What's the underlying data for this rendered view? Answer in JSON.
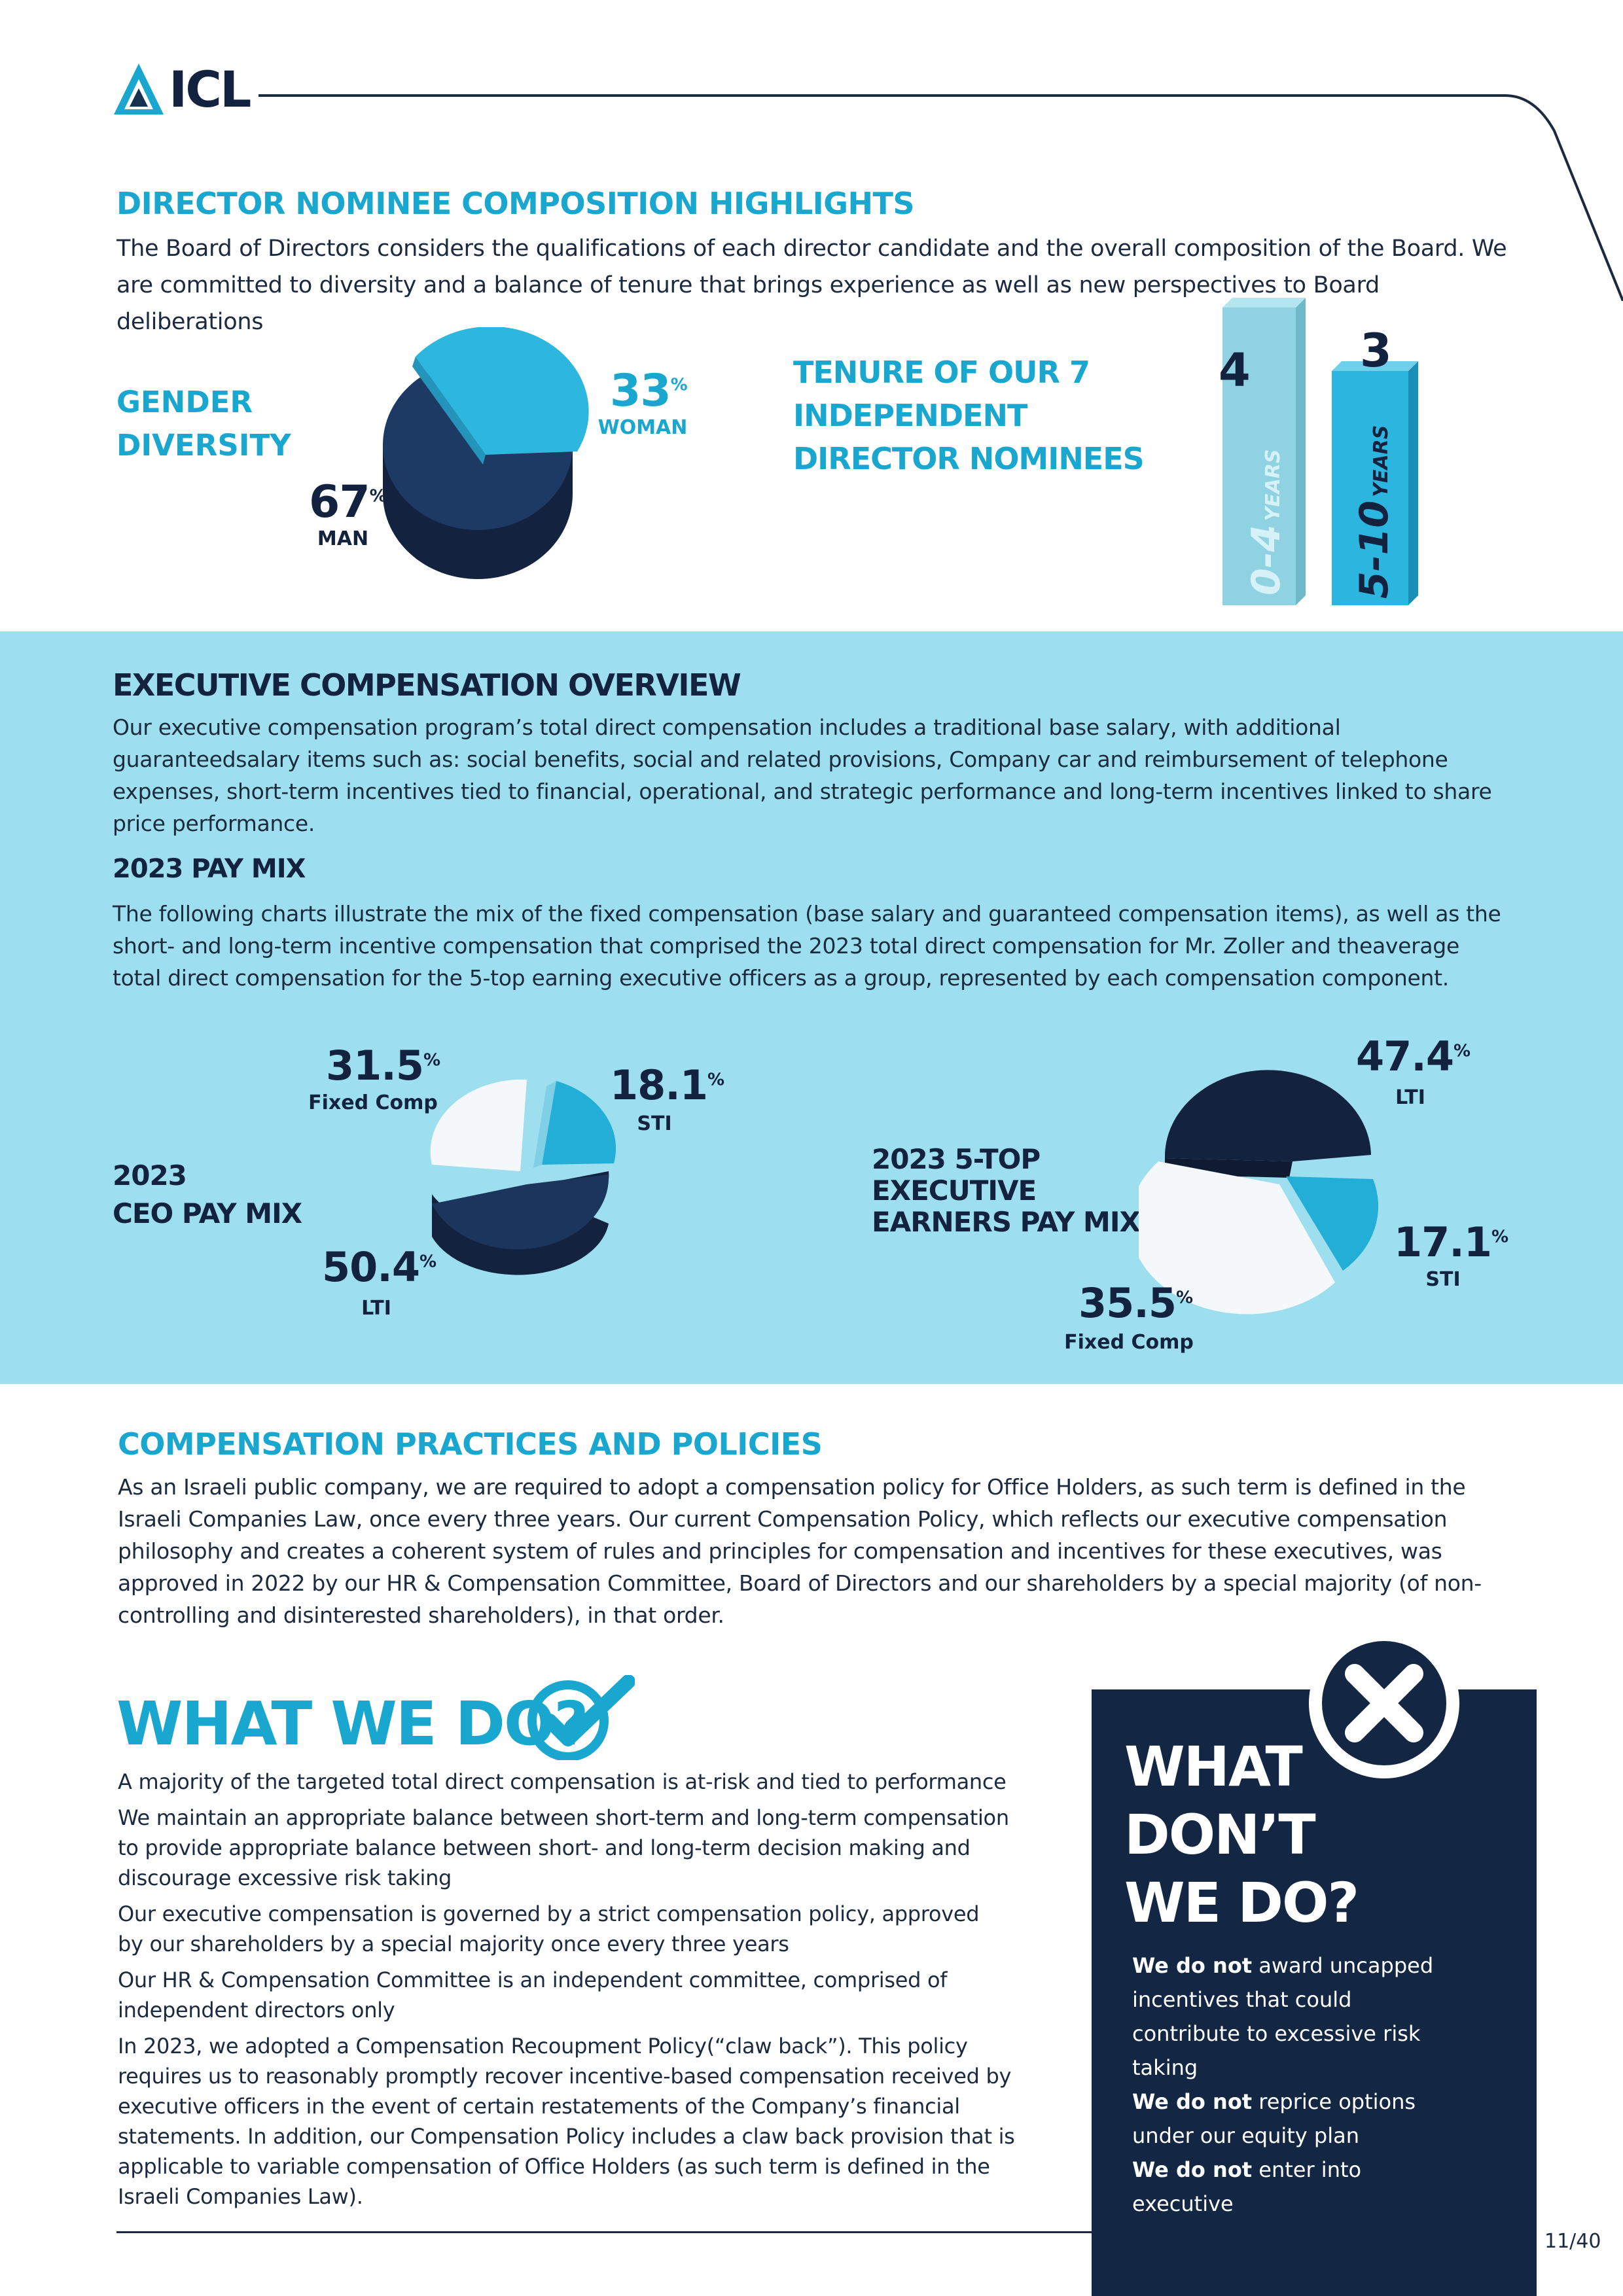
{
  "header": {
    "logo_text": "ICL"
  },
  "director": {
    "title": "DIRECTOR NOMINEE COMPOSITION HIGHLIGHTS",
    "intro": "The Board of Directors considers the qualifications of each director candidate and the overall composition of the Board. We are committed to diversity and a balance of tenure that brings experience as well as new perspectives to Board deliberations",
    "gender": {
      "title_line1": "GENDER",
      "title_line2": "DIVERSITY",
      "woman_value": "33",
      "woman_label": "WOMAN",
      "man_value": "67",
      "man_label": "MAN",
      "pct_sign": "%"
    },
    "tenure": {
      "title_line1": "TENURE OF OUR 7",
      "title_line2": "INDEPENDENT",
      "title_line3": "DIRECTOR NOMINEES",
      "bars": [
        {
          "count": "4",
          "label": "0-4",
          "unit": "YEARS"
        },
        {
          "count": "3",
          "label": "5-10",
          "unit": "YEARS"
        }
      ]
    }
  },
  "exec": {
    "title": "EXECUTIVE COMPENSATION OVERVIEW",
    "intro": "Our executive compensation program’s total direct compensation includes a traditional base salary, with additional guaranteedsalary items such as: social benefits, social and related provisions, Company car and reimbursement of telephone expenses, short-term incentives tied to financial, operational, and strategic performance and long-term incentives linked to share price performance.",
    "paymix_title": "2023 PAY MIX",
    "paymix_text": "The following charts illustrate the mix of the fixed compensation (base salary and guaranteed compensation items), as well as the short- and long-term incentive compensation that comprised the 2023 total direct compensation for Mr. Zoller and theaverage total direct compensation for the 5-top earning executive officers as a group, represented by each compensation component.",
    "ceo": {
      "title_line1": "2023",
      "title_line2": "CEO PAY MIX",
      "fixed_value": "31.5",
      "fixed_label": "Fixed Comp",
      "sti_value": "18.1",
      "sti_label": "STI",
      "lti_value": "50.4",
      "lti_label": "LTI"
    },
    "top5": {
      "title_line1": "2023 5-TOP",
      "title_line2": "EXECUTIVE",
      "title_line3": "EARNERS PAY MIX",
      "lti_value": "47.4",
      "lti_label": "LTI",
      "sti_value": "17.1",
      "sti_label": "STI",
      "fixed_value": "35.5",
      "fixed_label": "Fixed Comp"
    }
  },
  "practices": {
    "title": "COMPENSATION PRACTICES AND POLICIES",
    "text": "As an Israeli public company, we are required to adopt a compensation policy for Office Holders, as such term is defined in the Israeli Companies Law, once every three years. Our current Compensation Policy, which reflects our executive compensation philosophy and creates a coherent system of rules and principles for compensation and incentives for these executives, was approved in 2022 by our HR & Compensation Committee, Board of Directors and our shareholders by a special majority (of non-controlling and disinterested shareholders), in that order."
  },
  "what_we_do": {
    "title": "WHAT WE DO?",
    "items": [
      "A majority of the targeted total direct compensation is at-risk and tied to performance",
      "We maintain an appropriate balance between short-term and long-term compensation to provide appropriate balance between short- and long-term decision making and discourage excessive risk taking",
      "Our executive compensation is governed by a strict compensation policy, approved by our shareholders by a special majority once every three years",
      "Our HR & Compensation Committee is an independent committee, comprised of independent directors only",
      "In  2023,  we adopted a Compensation Recoupment Policy(“claw back”). This policy requires us to reasonably promptly recover incentive-based compensation received by executive officers in the event of certain restatements of the Company’s financial statements.  In addition, our Compensation Policy includes a claw back provision that is applicable to variable compensation of Office Holders (as such term is defined in the Israeli Companies Law)."
    ]
  },
  "what_we_dont": {
    "title_line1": "WHAT",
    "title_line2": "DON’T",
    "title_line3": "WE DO?",
    "items": [
      {
        "bold": "We do not",
        "text": " award uncapped incentives that could contribute to excessive risk taking"
      },
      {
        "bold": "We do not",
        "text": " reprice options under our equity plan"
      },
      {
        "bold": "We do not",
        "text": " enter into executive"
      }
    ]
  },
  "footer": {
    "page": "11/40"
  },
  "colors": {
    "cyan": "#19a7cf",
    "navy": "#13233f",
    "band": "#9ddfee",
    "dark_box": "#132744"
  }
}
